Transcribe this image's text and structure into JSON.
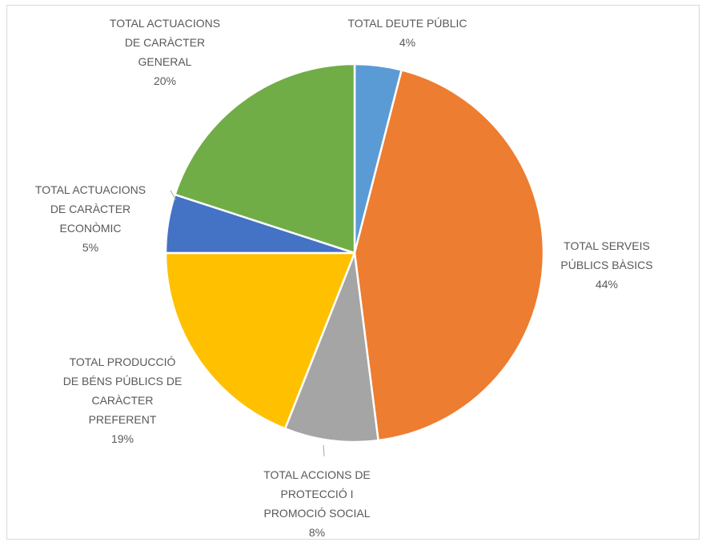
{
  "chart_data": {
    "type": "pie",
    "title": "",
    "slices": [
      {
        "label_lines": [
          "TOTAL DEUTE PÚBLIC"
        ],
        "value": 4,
        "pct_label": "4%",
        "color": "#5b9bd5"
      },
      {
        "label_lines": [
          "TOTAL SERVEIS",
          "PÚBLICS BÀSICS"
        ],
        "value": 44,
        "pct_label": "44%",
        "color": "#ed7d31"
      },
      {
        "label_lines": [
          "TOTAL ACCIONS DE",
          "PROTECCIÓ I",
          "PROMOCIÓ SOCIAL"
        ],
        "value": 8,
        "pct_label": "8%",
        "color": "#a5a5a5"
      },
      {
        "label_lines": [
          "TOTAL PRODUCCIÓ",
          "DE BÉNS PÚBLICS DE",
          "CARÀCTER",
          "PREFERENT"
        ],
        "value": 19,
        "pct_label": "19%",
        "color": "#ffc000"
      },
      {
        "label_lines": [
          "TOTAL ACTUACIONS",
          "DE CARÀCTER",
          "ECONÒMIC"
        ],
        "value": 5,
        "pct_label": "5%",
        "color": "#4472c4"
      },
      {
        "label_lines": [
          "TOTAL ACTUACIONS",
          "DE CARÀCTER",
          "GENERAL"
        ],
        "value": 20,
        "pct_label": "20%",
        "color": "#70ad47"
      }
    ],
    "legend": "none",
    "data_labels": "outside"
  }
}
